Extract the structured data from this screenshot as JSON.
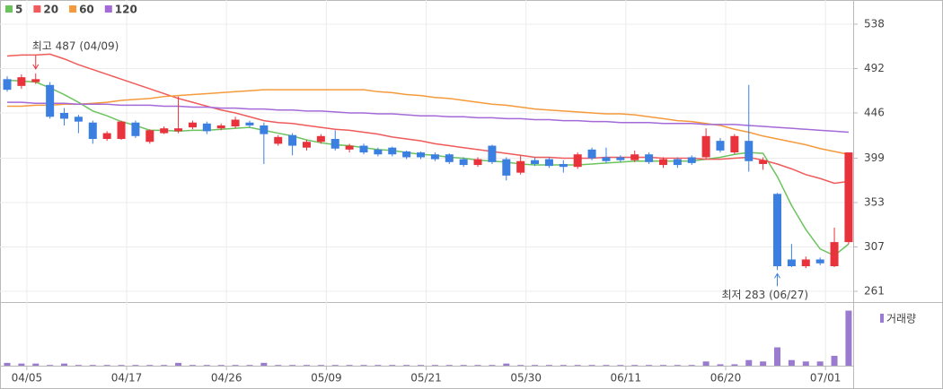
{
  "chart_data": {
    "type": "candlestick",
    "categories": [
      null,
      "04/05",
      null,
      null,
      null,
      null,
      null,
      null,
      "04/17",
      null,
      null,
      null,
      null,
      null,
      null,
      "04/26",
      null,
      null,
      null,
      null,
      null,
      null,
      "05/09",
      null,
      null,
      null,
      null,
      null,
      null,
      "05/21",
      null,
      null,
      null,
      null,
      null,
      null,
      "05/30",
      null,
      null,
      null,
      null,
      null,
      null,
      "06/11",
      null,
      null,
      null,
      null,
      null,
      null,
      "06/20",
      null,
      null,
      null,
      null,
      null,
      null,
      "07/01",
      null,
      null
    ],
    "open": [
      481,
      474,
      478,
      475,
      446,
      442,
      436,
      419,
      419,
      436,
      416,
      425,
      427,
      431,
      435,
      430,
      432,
      436,
      433,
      414,
      423,
      410,
      416,
      419,
      408,
      412,
      408,
      410,
      406,
      405,
      403,
      403,
      398,
      392,
      412,
      398,
      384,
      397,
      398,
      393,
      390,
      408,
      400,
      400,
      397,
      403,
      392,
      398,
      400,
      400,
      417,
      405,
      417,
      393,
      362,
      294,
      287,
      294,
      287,
      312
    ],
    "high": [
      484,
      486,
      487,
      478,
      451,
      444,
      438,
      427,
      438,
      438,
      429,
      432,
      463,
      438,
      437,
      435,
      442,
      438,
      436,
      423,
      425,
      418,
      424,
      428,
      414,
      414,
      410,
      411,
      407,
      406,
      405,
      404,
      400,
      400,
      413,
      400,
      402,
      400,
      400,
      397,
      405,
      410,
      410,
      402,
      407,
      405,
      400,
      400,
      402,
      430,
      420,
      424,
      475,
      400,
      363,
      310,
      297,
      296,
      327,
      405
    ],
    "low": [
      468,
      471,
      476,
      440,
      433,
      425,
      414,
      417,
      418,
      420,
      414,
      424,
      425,
      429,
      424,
      428,
      430,
      431,
      393,
      412,
      402,
      407,
      414,
      407,
      405,
      403,
      401,
      401,
      398,
      398,
      396,
      393,
      390,
      390,
      393,
      376,
      382,
      391,
      389,
      384,
      388,
      397,
      394,
      395,
      395,
      393,
      389,
      389,
      392,
      398,
      405,
      403,
      385,
      387,
      283,
      286,
      285,
      288,
      286,
      310
    ],
    "close": [
      470,
      483,
      481,
      442,
      440,
      437,
      419,
      425,
      437,
      422,
      428,
      430,
      430,
      436,
      427,
      433,
      439,
      433,
      424,
      421,
      412,
      416,
      422,
      409,
      412,
      405,
      403,
      403,
      400,
      400,
      398,
      395,
      392,
      398,
      395,
      381,
      396,
      393,
      391,
      390,
      403,
      399,
      396,
      397,
      403,
      395,
      398,
      392,
      394,
      422,
      407,
      422,
      396,
      397,
      287,
      287,
      294,
      290,
      312,
      405
    ],
    "up_color": "#e8323c",
    "down_color": "#3b7fe0",
    "series": [
      {
        "name": "5",
        "color": "#6cc35e",
        "values": [
          480,
          479,
          478,
          472,
          465,
          457,
          448,
          443,
          437,
          433,
          428,
          428,
          427,
          428,
          428,
          429,
          430,
          431,
          428,
          425,
          422,
          418,
          415,
          413,
          412,
          410,
          408,
          407,
          405,
          403,
          402,
          400,
          399,
          397,
          396,
          395,
          393,
          392,
          392,
          392,
          392,
          393,
          394,
          395,
          396,
          396,
          396,
          396,
          396,
          398,
          400,
          403,
          405,
          404,
          380,
          350,
          325,
          305,
          298,
          310
        ]
      },
      {
        "name": "20",
        "color": "#ef5a5a",
        "values": [
          505,
          506,
          506,
          507,
          502,
          496,
          491,
          486,
          481,
          476,
          471,
          466,
          461,
          457,
          453,
          449,
          446,
          442,
          438,
          436,
          435,
          433,
          431,
          429,
          428,
          426,
          424,
          421,
          419,
          417,
          414,
          412,
          410,
          408,
          406,
          404,
          402,
          400,
          400,
          399,
          399,
          399,
          400,
          400,
          400,
          400,
          399,
          399,
          399,
          398,
          398,
          399,
          400,
          397,
          393,
          388,
          382,
          378,
          373,
          375
        ]
      },
      {
        "name": "60",
        "color": "#f59a3c",
        "values": [
          453,
          453,
          454,
          454,
          455,
          455,
          456,
          457,
          459,
          460,
          461,
          463,
          464,
          465,
          466,
          467,
          468,
          469,
          470,
          470,
          470,
          470,
          470,
          470,
          470,
          470,
          468,
          467,
          465,
          464,
          462,
          461,
          459,
          457,
          455,
          454,
          452,
          450,
          449,
          448,
          447,
          446,
          445,
          445,
          444,
          442,
          440,
          438,
          437,
          435,
          433,
          429,
          426,
          422,
          419,
          416,
          413,
          409,
          406,
          403
        ]
      },
      {
        "name": "120",
        "color": "#a36ad8",
        "values": [
          457,
          457,
          456,
          456,
          456,
          455,
          455,
          455,
          454,
          454,
          454,
          453,
          453,
          452,
          452,
          451,
          451,
          450,
          450,
          449,
          449,
          448,
          448,
          447,
          446,
          446,
          445,
          445,
          444,
          443,
          443,
          442,
          442,
          441,
          441,
          440,
          440,
          439,
          439,
          438,
          438,
          437,
          437,
          436,
          436,
          436,
          435,
          435,
          435,
          434,
          434,
          434,
          433,
          432,
          431,
          430,
          429,
          428,
          427,
          426
        ]
      }
    ],
    "volume": [
      4,
      3,
      3,
      1,
      3,
      1,
      1,
      1,
      1,
      1,
      1,
      1,
      4,
      1,
      1,
      1,
      1,
      1,
      4,
      1,
      1,
      1,
      1,
      1,
      1,
      1,
      1,
      1,
      1,
      1,
      1,
      1,
      1,
      1,
      1,
      3,
      1,
      1,
      1,
      1,
      1,
      1,
      1,
      1,
      1,
      1,
      1,
      1,
      1,
      6,
      2,
      2,
      8,
      6,
      26,
      8,
      6,
      6,
      14,
      78
    ],
    "volume_color": "#9a7bd0",
    "volume_ylim": [
      0,
      80
    ],
    "volume_label": "거래량",
    "ylim": [
      250,
      558
    ],
    "yticks": [
      261,
      307,
      353,
      399,
      446,
      492,
      538
    ],
    "grid": true,
    "annotations": [
      "최고 487 (04/09)",
      "최저 283 (06/27)"
    ]
  }
}
